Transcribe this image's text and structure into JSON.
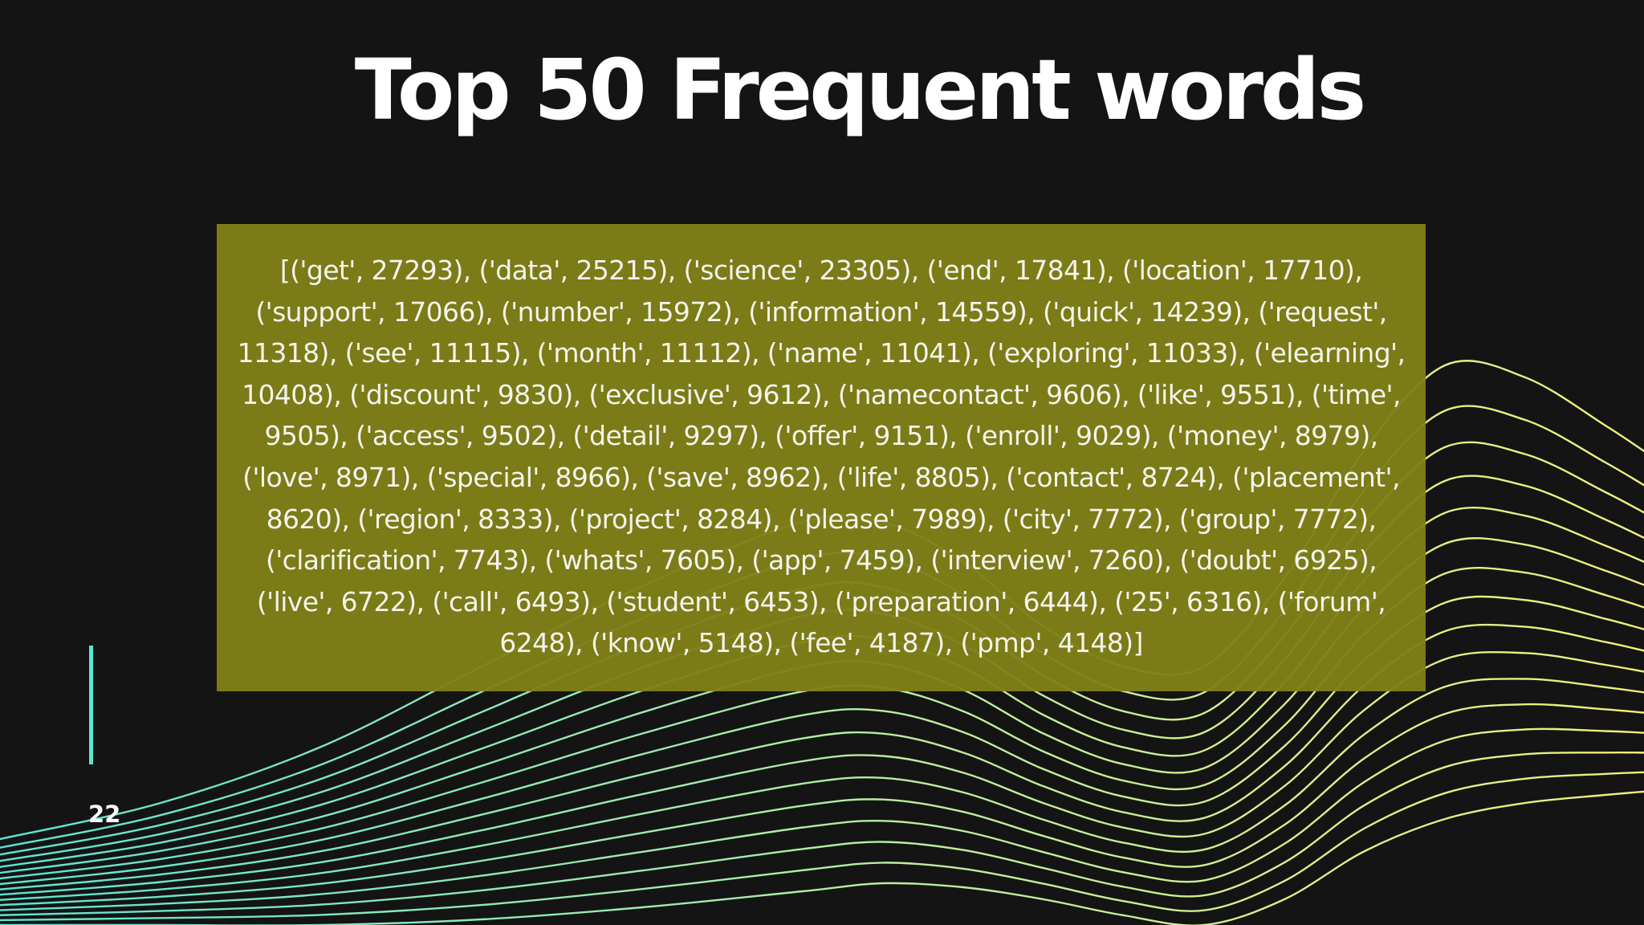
{
  "slide": {
    "title": "Top 50 Frequent words",
    "word_frequency_text": "[('get', 27293), ('data', 25215), ('science', 23305), ('end', 17841), ('location', 17710), ('support', 17066), ('number', 15972), ('information', 14559), ('quick', 14239), ('request', 11318), ('see', 11115), ('month', 11112), ('name', 11041), ('exploring', 11033), ('elearning', 10408), ('discount', 9830), ('exclusive', 9612), ('namecontact', 9606), ('like', 9551), ('time', 9505), ('access', 9502), ('detail', 9297), ('offer', 9151), ('enroll', 9029), ('money', 8979), ('love', 8971), ('special', 8966), ('save', 8962), ('life', 8805), ('contact', 8724), ('placement', 8620), ('region', 8333), ('project', 8284), ('please', 7989), ('city', 7772), ('group', 7772), ('clarification', 7743), ('whats', 7605), ('app', 7459), ('interview', 7260), ('doubt', 6925), ('live', 6722), ('call', 6493), ('student', 6453), ('preparation', 6444), ('25', 6316), ('forum', 6248), ('know', 5148), ('fee', 4187), ('pmp', 4148)]",
    "page_number": "22"
  },
  "colors": {
    "background": "#141414",
    "text_box": "#808019",
    "accent": "#5ce5d2",
    "wave_start": "#5ce5d2",
    "wave_end": "#f0f07a"
  }
}
